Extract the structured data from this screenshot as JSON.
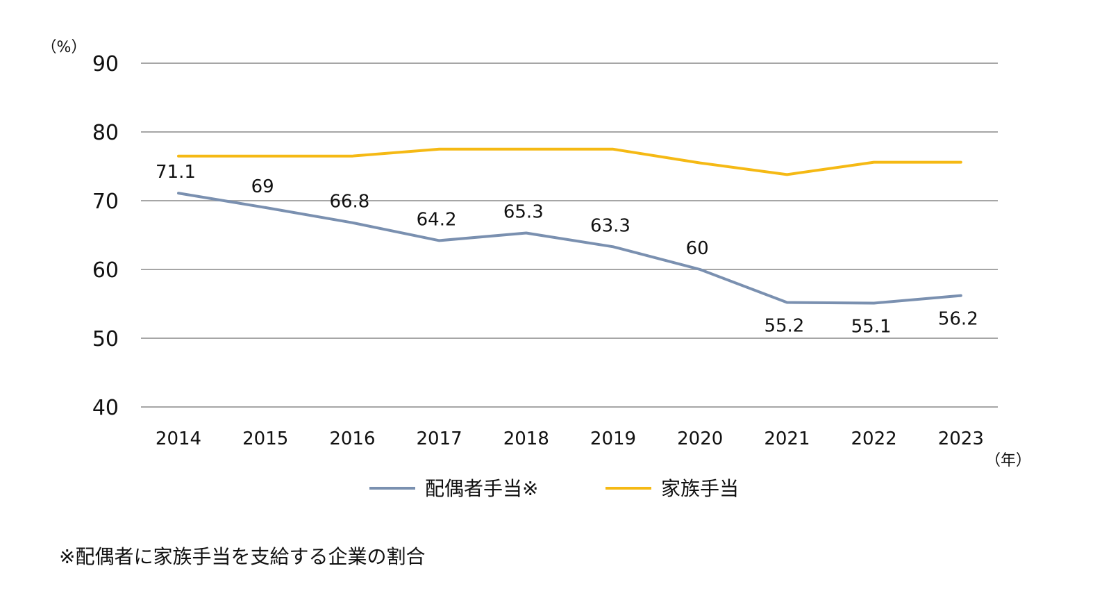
{
  "chart_data": {
    "type": "line",
    "categories": [
      "2014",
      "2015",
      "2016",
      "2017",
      "2018",
      "2019",
      "2020",
      "2021",
      "2022",
      "2023"
    ],
    "series": [
      {
        "name": "配偶者手当※",
        "color": "#7a90b0",
        "values": [
          71.1,
          69,
          66.8,
          64.2,
          65.3,
          63.3,
          60,
          55.2,
          55.1,
          56.2
        ],
        "labels": [
          "71.1",
          "69",
          "66.8",
          "64.2",
          "65.3",
          "63.3",
          "60",
          "55.2",
          "55.1",
          "56.2"
        ]
      },
      {
        "name": "家族手当",
        "color": "#f5b914",
        "values": [
          76.5,
          76.5,
          76.5,
          77.5,
          77.5,
          77.5,
          75.5,
          73.8,
          75.6,
          75.6
        ]
      }
    ],
    "ylim": [
      40,
      90
    ],
    "yticks": [
      "40",
      "50",
      "60",
      "70",
      "80",
      "90"
    ],
    "y_unit": "（%）",
    "x_unit": "（年）",
    "grid": true,
    "legend": "bottom"
  },
  "footnote": "※配偶者に家族手当を支給する企業の割合"
}
